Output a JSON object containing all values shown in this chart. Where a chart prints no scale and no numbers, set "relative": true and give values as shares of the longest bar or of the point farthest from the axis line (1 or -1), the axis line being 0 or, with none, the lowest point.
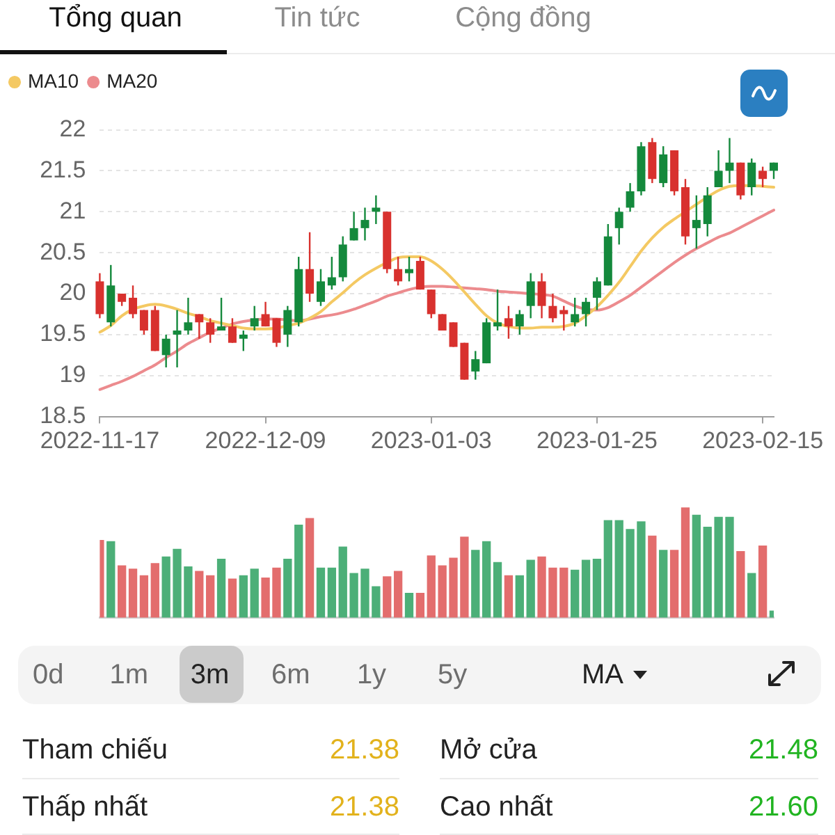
{
  "chart_data": [
    {
      "type": "candlestick",
      "categories": [
        "2022-11-17",
        null,
        null,
        null,
        null,
        null,
        null,
        null,
        null,
        null,
        null,
        null,
        null,
        null,
        null,
        "2022-12-09",
        null,
        null,
        null,
        null,
        null,
        null,
        null,
        null,
        null,
        null,
        null,
        null,
        null,
        null,
        "2023-01-03",
        null,
        null,
        null,
        null,
        null,
        null,
        null,
        null,
        null,
        null,
        null,
        null,
        null,
        null,
        "2023-01-25",
        null,
        null,
        null,
        null,
        null,
        null,
        null,
        null,
        null,
        null,
        null,
        null,
        null,
        null,
        "2023-02-15",
        null
      ],
      "ohlc": [
        [
          20.15,
          20.25,
          19.7,
          19.75
        ],
        [
          19.65,
          20.35,
          19.6,
          20.1
        ],
        [
          20.0,
          20.0,
          19.85,
          19.9
        ],
        [
          19.95,
          20.1,
          19.7,
          19.75
        ],
        [
          19.8,
          19.8,
          19.5,
          19.55
        ],
        [
          19.8,
          19.85,
          19.3,
          19.3
        ],
        [
          19.25,
          19.5,
          19.1,
          19.45
        ],
        [
          19.5,
          19.8,
          19.1,
          19.55
        ],
        [
          19.55,
          19.95,
          19.5,
          19.65
        ],
        [
          19.75,
          19.75,
          19.45,
          19.65
        ],
        [
          19.65,
          19.7,
          19.4,
          19.5
        ],
        [
          19.55,
          19.95,
          19.55,
          19.6
        ],
        [
          19.6,
          19.7,
          19.4,
          19.4
        ],
        [
          19.45,
          19.55,
          19.3,
          19.5
        ],
        [
          19.6,
          19.85,
          19.55,
          19.7
        ],
        [
          19.75,
          19.9,
          19.6,
          19.6
        ],
        [
          19.7,
          19.7,
          19.35,
          19.4
        ],
        [
          19.5,
          19.85,
          19.35,
          19.8
        ],
        [
          19.65,
          20.45,
          19.6,
          20.3
        ],
        [
          20.3,
          20.75,
          19.9,
          20.0
        ],
        [
          19.9,
          20.3,
          19.85,
          20.15
        ],
        [
          20.1,
          20.45,
          20.05,
          20.2
        ],
        [
          20.2,
          20.7,
          20.15,
          20.6
        ],
        [
          20.65,
          21.0,
          20.65,
          20.8
        ],
        [
          20.8,
          21.05,
          20.65,
          20.9
        ],
        [
          21.0,
          21.2,
          20.85,
          21.05
        ],
        [
          21.0,
          21.0,
          20.25,
          20.3
        ],
        [
          20.3,
          20.45,
          20.1,
          20.15
        ],
        [
          20.25,
          20.45,
          20.15,
          20.3
        ],
        [
          20.4,
          20.45,
          20.05,
          20.05
        ],
        [
          20.05,
          20.05,
          19.7,
          19.75
        ],
        [
          19.75,
          19.75,
          19.55,
          19.55
        ],
        [
          19.65,
          19.65,
          19.35,
          19.35
        ],
        [
          19.4,
          19.4,
          18.95,
          18.95
        ],
        [
          19.05,
          19.3,
          18.95,
          19.2
        ],
        [
          19.15,
          19.7,
          19.15,
          19.65
        ],
        [
          19.6,
          20.05,
          19.55,
          19.65
        ],
        [
          19.7,
          19.85,
          19.45,
          19.6
        ],
        [
          19.6,
          19.8,
          19.5,
          19.75
        ],
        [
          19.85,
          20.25,
          19.7,
          20.15
        ],
        [
          20.15,
          20.25,
          19.7,
          19.85
        ],
        [
          19.85,
          20.0,
          19.65,
          19.7
        ],
        [
          19.8,
          19.85,
          19.55,
          19.75
        ],
        [
          19.65,
          19.95,
          19.6,
          19.75
        ],
        [
          19.75,
          19.95,
          19.6,
          19.9
        ],
        [
          19.95,
          20.2,
          19.8,
          20.15
        ],
        [
          20.1,
          20.85,
          20.1,
          20.7
        ],
        [
          20.8,
          21.05,
          20.6,
          21.0
        ],
        [
          21.05,
          21.35,
          21.0,
          21.25
        ],
        [
          21.25,
          21.85,
          21.2,
          21.8
        ],
        [
          21.85,
          21.9,
          21.35,
          21.4
        ],
        [
          21.35,
          21.8,
          21.3,
          21.7
        ],
        [
          21.75,
          21.75,
          21.2,
          21.25
        ],
        [
          21.3,
          21.4,
          20.6,
          20.7
        ],
        [
          20.8,
          21.2,
          20.55,
          20.9
        ],
        [
          20.85,
          21.3,
          20.7,
          21.2
        ],
        [
          21.3,
          21.75,
          21.3,
          21.5
        ],
        [
          21.5,
          21.9,
          21.35,
          21.6
        ],
        [
          21.6,
          21.6,
          21.15,
          21.2
        ],
        [
          21.3,
          21.65,
          21.2,
          21.6
        ],
        [
          21.5,
          21.55,
          21.3,
          21.4
        ],
        [
          21.5,
          21.6,
          21.4,
          21.6
        ]
      ],
      "colors": [
        "#d8312e",
        "#14893c",
        "#d8312e",
        "#d8312e",
        "#d8312e",
        "#d8312e",
        "#14893c",
        "#14893c",
        "#14893c",
        "#d8312e",
        "#d8312e",
        "#14893c",
        "#d8312e",
        "#14893c",
        "#14893c",
        "#d8312e",
        "#d8312e",
        "#14893c",
        "#14893c",
        "#d8312e",
        "#14893c",
        "#14893c",
        "#14893c",
        "#14893c",
        "#14893c",
        "#14893c",
        "#d8312e",
        "#d8312e",
        "#14893c",
        "#d8312e",
        "#d8312e",
        "#d8312e",
        "#d8312e",
        "#d8312e",
        "#14893c",
        "#14893c",
        "#14893c",
        "#d8312e",
        "#14893c",
        "#14893c",
        "#d8312e",
        "#d8312e",
        "#d8312e",
        "#14893c",
        "#14893c",
        "#14893c",
        "#14893c",
        "#14893c",
        "#14893c",
        "#14893c",
        "#d8312e",
        "#14893c",
        "#d8312e",
        "#d8312e",
        "#14893c",
        "#14893c",
        "#14893c",
        "#14893c",
        "#d8312e",
        "#14893c",
        "#d8312e",
        "#14893c"
      ],
      "series": [
        {
          "name": "MA10",
          "type": "line",
          "color": "#f4c963",
          "values": [
            19.53,
            19.61,
            19.73,
            19.81,
            19.85,
            19.87,
            19.85,
            19.81,
            19.76,
            19.72,
            19.67,
            19.64,
            19.61,
            19.58,
            19.57,
            19.57,
            19.58,
            19.61,
            19.64,
            19.7,
            19.78,
            19.9,
            20.01,
            20.13,
            20.23,
            20.31,
            20.38,
            20.44,
            20.45,
            20.45,
            20.4,
            20.3,
            20.17,
            20.02,
            19.87,
            19.73,
            19.64,
            19.6,
            19.58,
            19.58,
            19.59,
            19.59,
            19.6,
            19.64,
            19.73,
            19.84,
            19.98,
            20.14,
            20.33,
            20.52,
            20.68,
            20.81,
            20.91,
            21.0,
            21.09,
            21.18,
            21.26,
            21.31,
            21.32,
            21.32,
            21.31,
            21.3
          ]
        },
        {
          "name": "MA20",
          "type": "line",
          "color": "#ec8b8e",
          "values": [
            18.83,
            18.88,
            18.93,
            18.99,
            19.06,
            19.13,
            19.22,
            19.3,
            19.39,
            19.46,
            19.53,
            19.58,
            19.63,
            19.66,
            19.68,
            19.69,
            19.69,
            19.68,
            19.67,
            19.69,
            19.72,
            19.74,
            19.77,
            19.81,
            19.86,
            19.91,
            19.97,
            20.01,
            20.05,
            20.08,
            20.09,
            20.09,
            20.08,
            20.07,
            20.06,
            20.05,
            20.03,
            20.02,
            20.01,
            20.0,
            19.99,
            19.97,
            19.91,
            19.85,
            19.81,
            19.8,
            19.83,
            19.9,
            19.98,
            20.08,
            20.18,
            20.28,
            20.38,
            20.47,
            20.55,
            20.62,
            20.69,
            20.74,
            20.81,
            20.88,
            20.95,
            21.02
          ]
        }
      ],
      "ylim": [
        18.5,
        22
      ],
      "yticks": [
        18.5,
        19,
        19.5,
        20,
        20.5,
        21,
        21.5,
        22
      ],
      "grid": "y",
      "legend": "top left",
      "marker": "none",
      "annotations": [
        "Tổng quan",
        "Tin tức",
        "Cộng đồng",
        "0d",
        "1m",
        "3m",
        "6m",
        "1y",
        "5y",
        "MA"
      ]
    },
    {
      "type": "bar",
      "relative": true,
      "categories": [
        null,
        null,
        null,
        null,
        null,
        null,
        null,
        null,
        null,
        null,
        null,
        null,
        null,
        null,
        null,
        null,
        null,
        null,
        null,
        null,
        null,
        null,
        null,
        null,
        null,
        null,
        null,
        null,
        null,
        null,
        null,
        null,
        null,
        null,
        null,
        null,
        null,
        null,
        null,
        null,
        null,
        null,
        null,
        null,
        null,
        null,
        null,
        null,
        null,
        null,
        null,
        null,
        null,
        null,
        null,
        null,
        null,
        null,
        null,
        null,
        null,
        null
      ],
      "values": [
        0.7,
        0.69,
        0.47,
        0.44,
        0.38,
        0.49,
        0.55,
        0.62,
        0.46,
        0.42,
        0.38,
        0.53,
        0.35,
        0.38,
        0.44,
        0.36,
        0.45,
        0.53,
        0.84,
        0.9,
        0.45,
        0.45,
        0.64,
        0.4,
        0.44,
        0.28,
        0.37,
        0.42,
        0.22,
        0.22,
        0.56,
        0.47,
        0.54,
        0.73,
        0.61,
        0.69,
        0.5,
        0.38,
        0.38,
        0.52,
        0.55,
        0.45,
        0.45,
        0.43,
        0.52,
        0.53,
        0.88,
        0.88,
        0.8,
        0.87,
        0.74,
        0.61,
        0.61,
        1,
        0.93,
        0.82,
        0.91,
        0.91,
        0.6,
        0.4,
        0.65,
        0.06
      ],
      "colors": [
        "#e36d6d",
        "#4caf78",
        "#e36d6d",
        "#e36d6d",
        "#e36d6d",
        "#e36d6d",
        "#4caf78",
        "#4caf78",
        "#4caf78",
        "#e36d6d",
        "#e36d6d",
        "#4caf78",
        "#e36d6d",
        "#4caf78",
        "#4caf78",
        "#e36d6d",
        "#e36d6d",
        "#4caf78",
        "#4caf78",
        "#e36d6d",
        "#4caf78",
        "#4caf78",
        "#4caf78",
        "#4caf78",
        "#4caf78",
        "#4caf78",
        "#e36d6d",
        "#e36d6d",
        "#4caf78",
        "#e36d6d",
        "#e36d6d",
        "#e36d6d",
        "#e36d6d",
        "#e36d6d",
        "#4caf78",
        "#4caf78",
        "#4caf78",
        "#e36d6d",
        "#4caf78",
        "#4caf78",
        "#e36d6d",
        "#e36d6d",
        "#e36d6d",
        "#4caf78",
        "#4caf78",
        "#4caf78",
        "#4caf78",
        "#4caf78",
        "#4caf78",
        "#4caf78",
        "#e36d6d",
        "#4caf78",
        "#e36d6d",
        "#e36d6d",
        "#4caf78",
        "#4caf78",
        "#4caf78",
        "#4caf78",
        "#e36d6d",
        "#4caf78",
        "#e36d6d",
        "#4caf78"
      ]
    },
    {
      "type": "other",
      "annotations": [
        "Tham chiếu",
        "21.38",
        "Mở cửa",
        "21.48",
        "Thấp nhất",
        "21.38",
        "Cao nhất",
        "21.60"
      ],
      "colors": [
        "#e2b21c",
        "#21b421",
        "#e2b21c",
        "#21b421"
      ]
    }
  ]
}
